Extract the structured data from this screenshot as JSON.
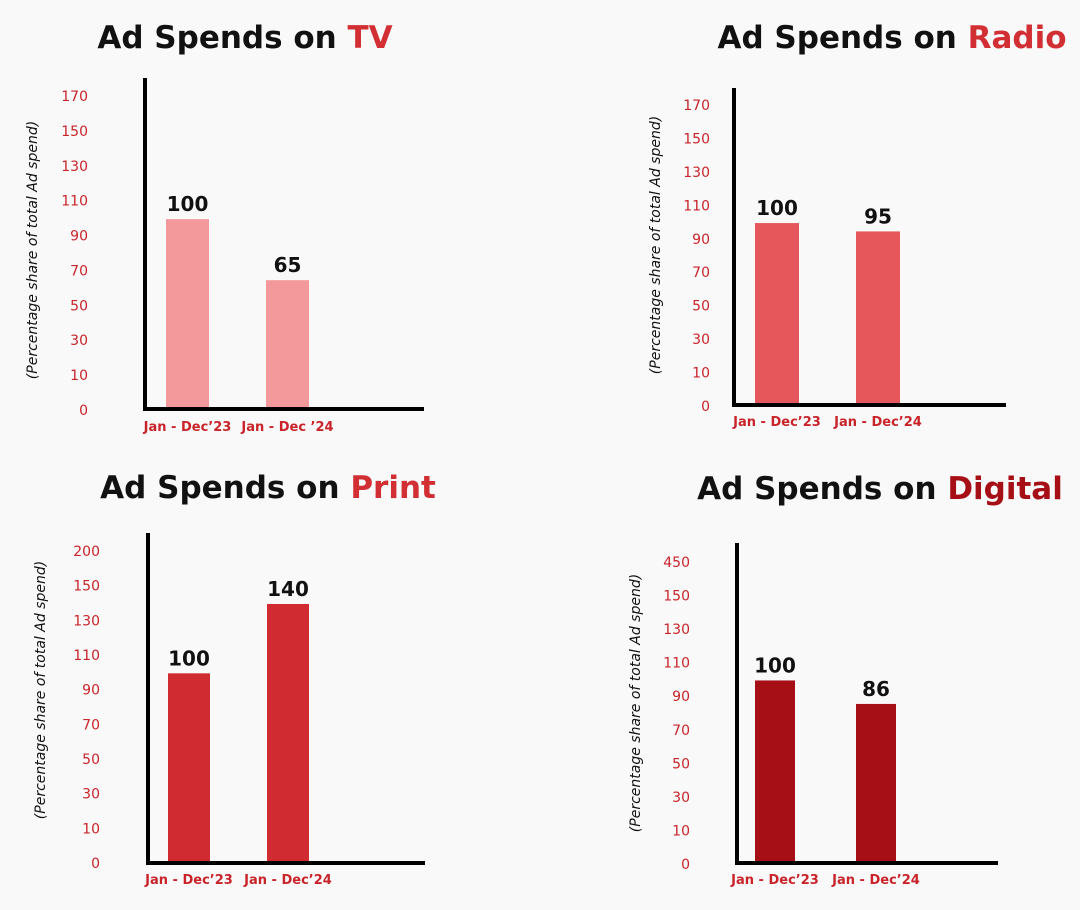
{
  "chart_data": [
    {
      "type": "bar",
      "title": "Ad Spends on",
      "title_highlight": "TV",
      "highlight_color": "#d12f33",
      "ylabel": "(Percentage share of total Ad spend)",
      "categories": [
        "Jan - Dec’23",
        "Jan - Dec ’24"
      ],
      "values": [
        100,
        65
      ],
      "color": "#f4999b",
      "ylim": [
        0,
        170
      ],
      "yticks": [
        0,
        10,
        30,
        50,
        70,
        90,
        110,
        130,
        150,
        170
      ]
    },
    {
      "type": "bar",
      "title": "Ad Spends on",
      "title_highlight": "Radio",
      "highlight_color": "#d12f33",
      "ylabel": "(Percentage share of total Ad spend)",
      "categories": [
        "Jan - Dec’23",
        "Jan - Dec’24"
      ],
      "values": [
        100,
        95
      ],
      "color": "#e5575b",
      "ylim": [
        0,
        170
      ],
      "yticks": [
        0,
        10,
        30,
        50,
        70,
        90,
        110,
        130,
        150,
        170
      ]
    },
    {
      "type": "bar",
      "title": "Ad Spends on",
      "title_highlight": "Print",
      "highlight_color": "#d12f33",
      "ylabel": "(Percentage share of total Ad spend)",
      "categories": [
        "Jan - Dec’23",
        "Jan - Dec’24"
      ],
      "values": [
        100,
        140
      ],
      "color": "#d02b30",
      "ylim": [
        0,
        200
      ],
      "yticks": [
        0,
        10,
        30,
        50,
        70,
        90,
        110,
        130,
        150,
        200
      ]
    },
    {
      "type": "bar",
      "title": "Ad Spends on",
      "title_highlight": "Digital",
      "highlight_color": "#a60f15",
      "ylabel": "(Percentage share of total Ad spend)",
      "categories": [
        "Jan - Dec’23",
        "Jan - Dec’24"
      ],
      "values": [
        100,
        86
      ],
      "color": "#a60f15",
      "ylim": [
        0,
        450
      ],
      "yticks": [
        0,
        10,
        30,
        50,
        70,
        90,
        110,
        130,
        150,
        450
      ]
    }
  ]
}
